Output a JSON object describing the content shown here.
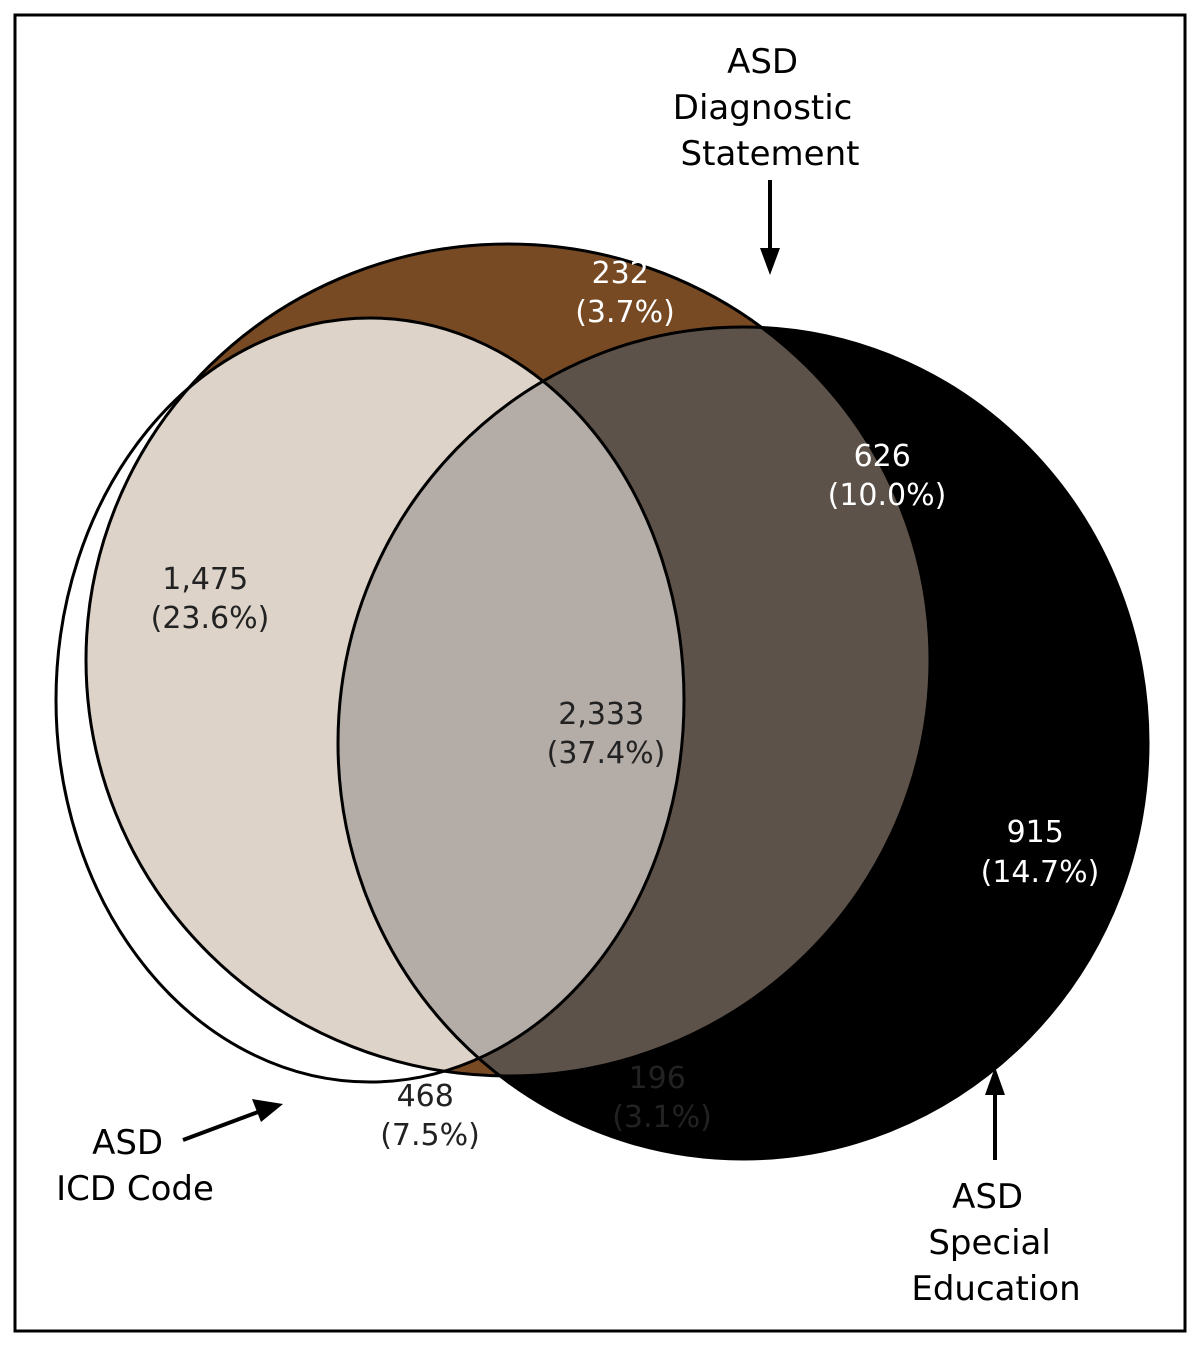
{
  "sets": {
    "diagnostic": [
      "ASD",
      "Diagnostic",
      "Statement"
    ],
    "icd": [
      "ASD",
      "ICD Code"
    ],
    "special_ed": [
      "ASD",
      "Special",
      "Education"
    ]
  },
  "regions": {
    "diagnostic_only": {
      "count": "232",
      "pct": "(3.7%)"
    },
    "diagnostic_special": {
      "count": "626",
      "pct": "(10.0%)"
    },
    "diagnostic_icd": {
      "count": "1,475",
      "pct": "(23.6%)"
    },
    "all_three": {
      "count": "2,333",
      "pct": "(37.4%)"
    },
    "special_only": {
      "count": "915",
      "pct": "(14.7%)"
    },
    "icd_only": {
      "count": "468",
      "pct": "(7.5%)"
    },
    "icd_special": {
      "count": "196",
      "pct": "(3.1%)"
    }
  },
  "colors": {
    "diagnostic_only": "#774a24",
    "diagnostic_special": "#5d5249",
    "diagnostic_icd": "#ddd3c9",
    "all_three": "#b4aca7",
    "special_only": "#000000",
    "icd_only": "#ffffff",
    "icd_special": "#c0c0c0"
  }
}
